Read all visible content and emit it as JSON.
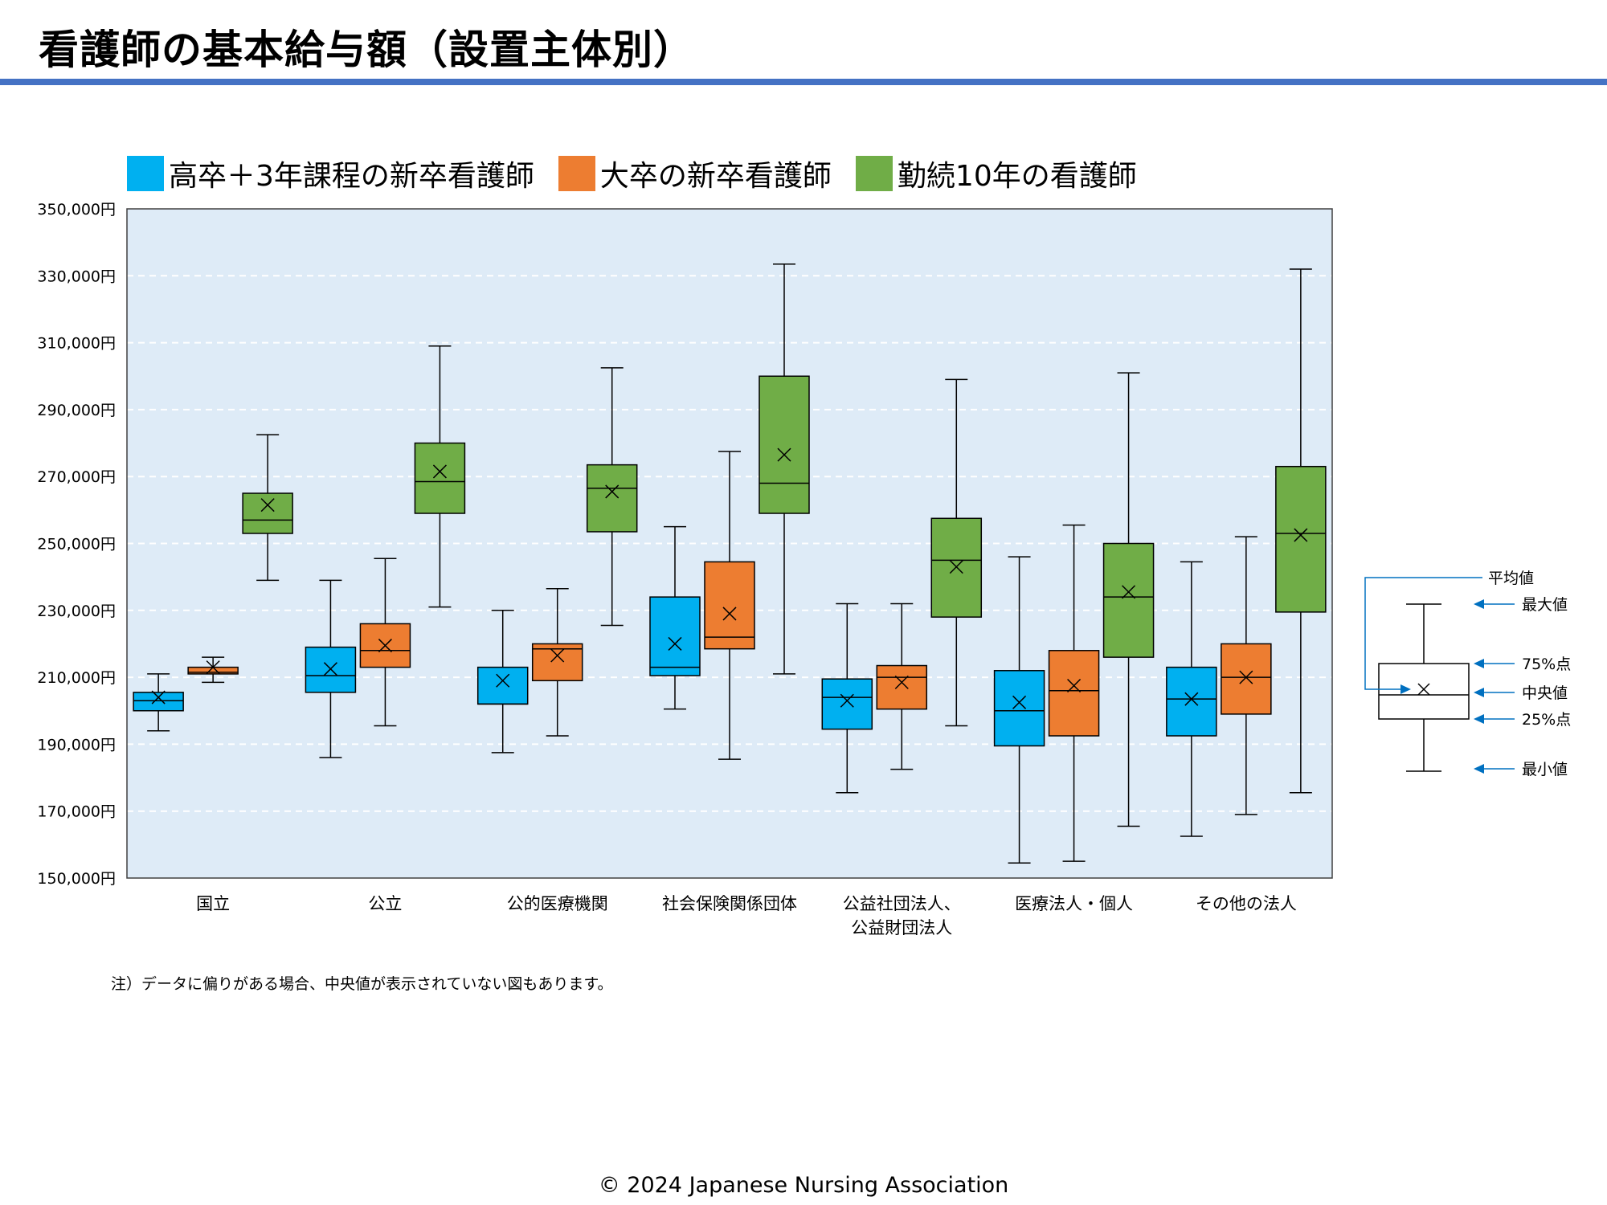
{
  "page": {
    "title": "看護師の基本給与額（設置主体別）",
    "note": "注）データに偏りがある場合、中央値が表示されていない図もあります。",
    "copyright": "© 2024 Japanese Nursing Association",
    "title_rule_color": "#4472c4"
  },
  "chart_data": {
    "type": "box",
    "title": "",
    "xlabel": "",
    "ylabel": "",
    "ylim": [
      150000,
      350000
    ],
    "y_ticks": [
      150000,
      170000,
      190000,
      210000,
      230000,
      250000,
      270000,
      290000,
      310000,
      330000,
      350000
    ],
    "y_tick_labels": [
      "150,000円",
      "170,000円",
      "190,000円",
      "210,000円",
      "230,000円",
      "250,000円",
      "270,000円",
      "290,000円",
      "310,000円",
      "330,000円",
      "350,000円"
    ],
    "grid": true,
    "plot_background": "#deebf7",
    "legend_position": "top",
    "categories": [
      "国立",
      "公立",
      "公的医療機関",
      "社会保険関係団体",
      "公益社団法人、\n公益財団法人",
      "医療法人・個人",
      "その他の法人"
    ],
    "series": [
      {
        "name": "高卒＋3年課程の新卒看護師",
        "color": "#00b0f0",
        "boxes": [
          {
            "min": 194000,
            "q1": 200000,
            "median": 203000,
            "q3": 205500,
            "max": 211000,
            "mean": 204000
          },
          {
            "min": 186000,
            "q1": 205500,
            "median": 210500,
            "q3": 219000,
            "max": 239000,
            "mean": 212500
          },
          {
            "min": 187500,
            "q1": 202000,
            "median": 202000,
            "q3": 213000,
            "max": 230000,
            "mean": 209000
          },
          {
            "min": 200500,
            "q1": 210500,
            "median": 213000,
            "q3": 234000,
            "max": 255000,
            "mean": 220000
          },
          {
            "min": 175500,
            "q1": 194500,
            "median": 204000,
            "q3": 209500,
            "max": 232000,
            "mean": 203000
          },
          {
            "min": 154500,
            "q1": 189500,
            "median": 200000,
            "q3": 212000,
            "max": 246000,
            "mean": 202500
          },
          {
            "min": 162500,
            "q1": 192500,
            "median": 203500,
            "q3": 213000,
            "max": 244500,
            "mean": 203500
          }
        ]
      },
      {
        "name": "大卒の新卒看護師",
        "color": "#ed7d31",
        "boxes": [
          {
            "min": 208500,
            "q1": 211000,
            "median": 211500,
            "q3": 213000,
            "max": 216000,
            "mean": 213000
          },
          {
            "min": 195500,
            "q1": 213000,
            "median": 218000,
            "q3": 226000,
            "max": 245500,
            "mean": 219500
          },
          {
            "min": 192500,
            "q1": 209000,
            "median": 218500,
            "q3": 220000,
            "max": 236500,
            "mean": 216500
          },
          {
            "min": 185500,
            "q1": 218500,
            "median": 222000,
            "q3": 244500,
            "max": 277500,
            "mean": 229000
          },
          {
            "min": 182500,
            "q1": 200500,
            "median": 210000,
            "q3": 213500,
            "max": 232000,
            "mean": 208500
          },
          {
            "min": 155000,
            "q1": 192500,
            "median": 206000,
            "q3": 218000,
            "max": 255500,
            "mean": 207500
          },
          {
            "min": 169000,
            "q1": 199000,
            "median": 210000,
            "q3": 220000,
            "max": 252000,
            "mean": 210000
          }
        ]
      },
      {
        "name": "勤続10年の看護師",
        "color": "#70ad47",
        "boxes": [
          {
            "min": 239000,
            "q1": 253000,
            "median": 257000,
            "q3": 265000,
            "max": 282500,
            "mean": 261500
          },
          {
            "min": 231000,
            "q1": 259000,
            "median": 268500,
            "q3": 280000,
            "max": 309000,
            "mean": 271500
          },
          {
            "min": 225500,
            "q1": 253500,
            "median": 266500,
            "q3": 273500,
            "max": 302500,
            "mean": 265500
          },
          {
            "min": 211000,
            "q1": 259000,
            "median": 268000,
            "q3": 300000,
            "max": 333500,
            "mean": 276500
          },
          {
            "min": 195500,
            "q1": 228000,
            "median": 245000,
            "q3": 257500,
            "max": 299000,
            "mean": 243000
          },
          {
            "min": 165500,
            "q1": 216000,
            "median": 234000,
            "q3": 250000,
            "max": 301000,
            "mean": 235500
          },
          {
            "min": 175500,
            "q1": 229500,
            "median": 253000,
            "q3": 273000,
            "max": 332000,
            "mean": 252500
          }
        ]
      }
    ]
  },
  "explanation": {
    "labels": {
      "mean": "平均値",
      "max": "最大値",
      "q3": "75%点",
      "median": "中央値",
      "q1": "25%点",
      "min": "最小値"
    },
    "arrow_color": "#0070c0"
  }
}
